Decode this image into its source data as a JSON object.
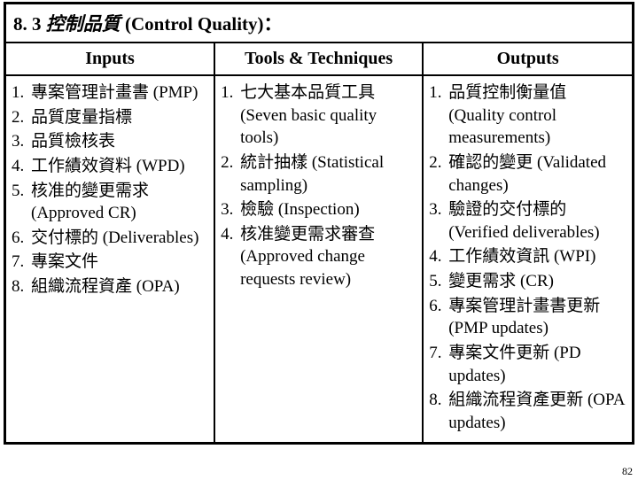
{
  "header": {
    "section_no": "8. 3",
    "topic_cn": "控制品質",
    "topic_en": "(Control Quality)",
    "colon": "："
  },
  "columns": {
    "inputs": "Inputs",
    "tools": "Tools & Techniques",
    "outputs": "Outputs"
  },
  "inputs": [
    "專案管理計畫書 (PMP)",
    "品質度量指標",
    "品質檢核表",
    "工作績效資料 (WPD)",
    "核准的變更需求 (Approved CR)",
    "交付標的 (Deliverables)",
    "專案文件",
    "組織流程資產 (OPA)"
  ],
  "tools": [
    "七大基本品質工具 (Seven basic quality tools)",
    "統計抽樣 (Statistical sampling)",
    "檢驗 (Inspection)",
    "核准變更需求審查 (Approved change requests review)"
  ],
  "outputs": [
    "品質控制衡量值 (Quality control measurements)",
    "確認的變更 (Validated changes)",
    "驗證的交付標的 (Verified deliverables)",
    "工作績效資訊 (WPI)",
    "變更需求 (CR)",
    "專案管理計畫書更新 (PMP updates)",
    "專案文件更新 (PD updates)",
    "組織流程資產更新 (OPA updates)"
  ],
  "col_widths": [
    "33.3%",
    "33.3%",
    "33.4%"
  ],
  "page_number": "82",
  "colors": {
    "border": "#000000",
    "background": "#ffffff",
    "text": "#000000"
  }
}
